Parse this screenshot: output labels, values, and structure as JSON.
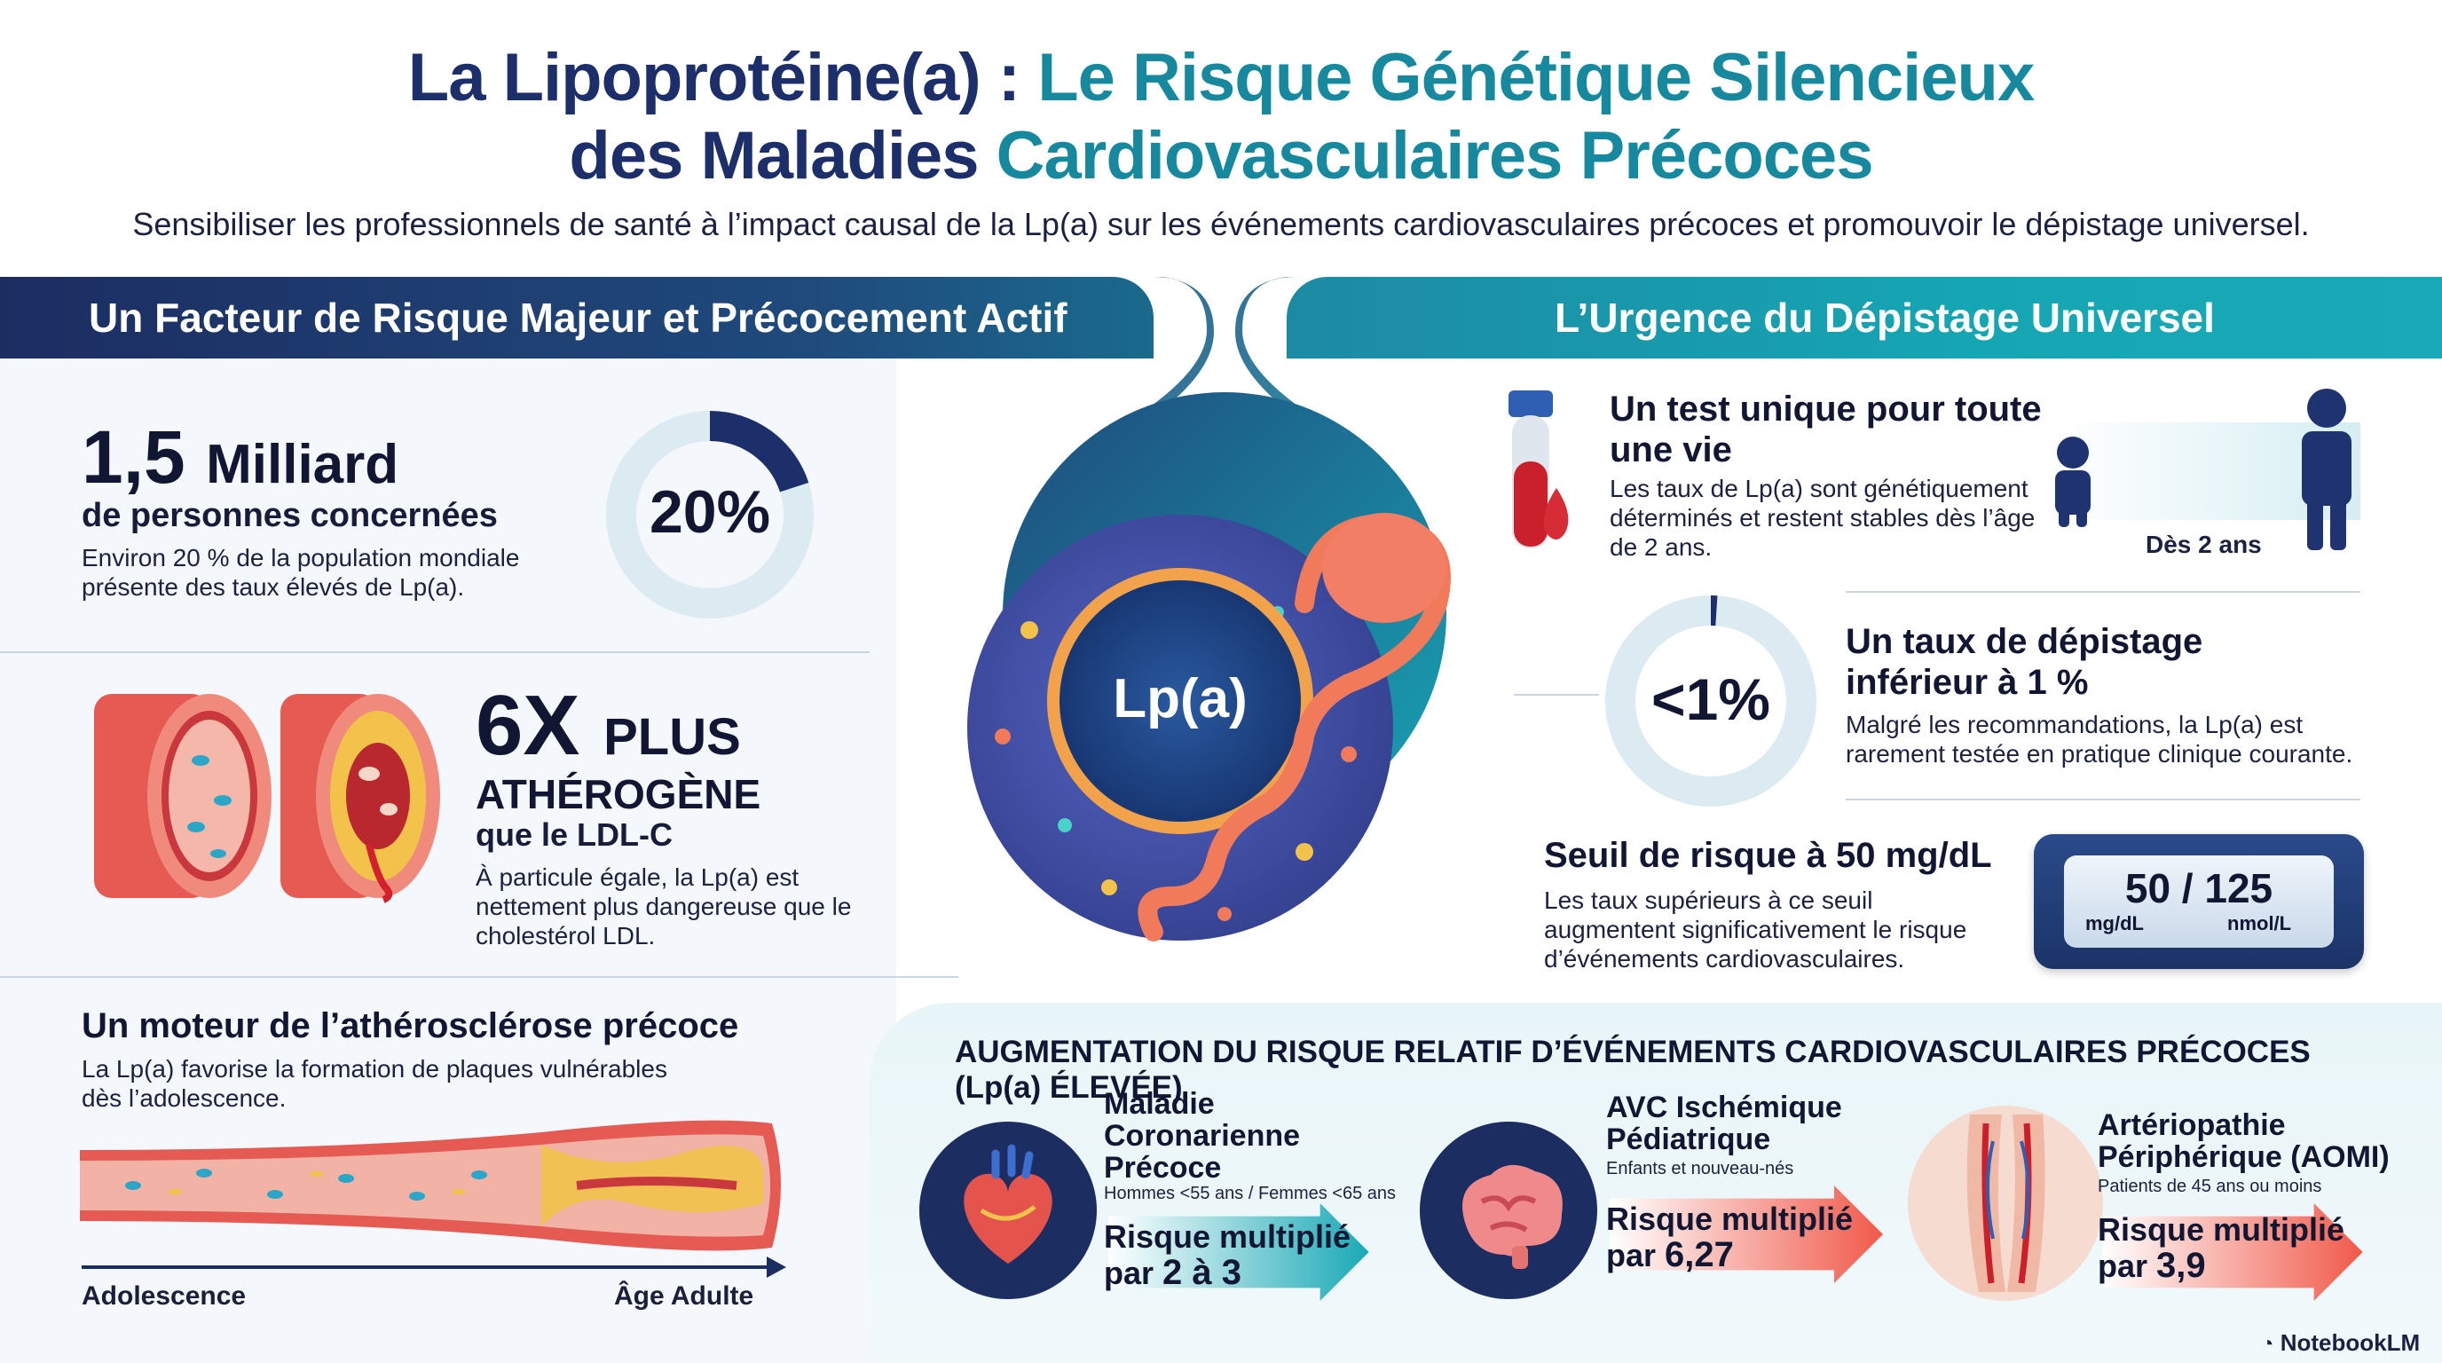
{
  "title": {
    "line1_dark": "La Lipoprotéine(a) : ",
    "line1_teal": "Le Risque Génétique Silencieux",
    "line2_dark": "des Maladies ",
    "line2_teal": "Cardiovasculaires Précoces"
  },
  "subtitle": "Sensibiliser les professionnels de santé à l’impact causal de la Lp(a) sur les événements cardiovasculaires précoces et promouvoir le dépistage universel.",
  "left_section": {
    "banner": "Un Facteur de Risque Majeur et Précocement Actif",
    "stat1": {
      "number": "1,5",
      "unit": "Milliard",
      "subtitle": "de personnes concernées",
      "description": "Environ 20 % de la population mondiale présente des taux élevés de Lp(a).",
      "donut_label": "20%",
      "donut_fraction": 0.2
    },
    "stat2": {
      "number": "6X",
      "unit": "PLUS",
      "subtitle1": "ATHÉROGÈNE",
      "subtitle2": "que le LDL-C",
      "description": "À particule égale, la Lp(a) est nettement plus dangereuse que le cholestérol LDL."
    },
    "stat3": {
      "title": "Un moteur de l’athérosclérose précoce",
      "description": "La Lp(a) favorise la formation de plaques vulnérables dès l’adolescence.",
      "axis_start": "Adolescence",
      "axis_end": "Âge Adulte"
    }
  },
  "center": {
    "molecule_label": "Lp(a)"
  },
  "right_section": {
    "banner": "L’Urgence du Dépistage Universel",
    "item1": {
      "title": "Un test unique pour toute une vie",
      "description": "Les taux de Lp(a) sont génétiquement déterminés et restent stables dès l’âge de 2 ans.",
      "people_label": "Dès 2 ans"
    },
    "item2": {
      "donut_label": "<1%",
      "donut_fraction": 0.01,
      "title": "Un taux de dépistage inférieur à 1 %",
      "description": "Malgré les recommandations, la Lp(a) est rarement testée en pratique clinique courante."
    },
    "item3": {
      "title": "Seuil de risque à 50 mg/dL",
      "description": "Les taux supérieurs à ce seuil augmentent significativement le risque d’événements cardiovasculaires.",
      "meter_value": "50 / 125",
      "meter_unit1": "mg/dL",
      "meter_unit2": "nmol/L"
    }
  },
  "risk_section": {
    "heading": "AUGMENTATION DU RISQUE RELATIF D’ÉVÉNEMENTS CARDIOVASCULAIRES PRÉCOCES (Lp(a) ÉLEVÉE)",
    "items": [
      {
        "icon": "heart-icon",
        "title_lines": [
          "Maladie",
          "Coronarienne",
          "Précoce"
        ],
        "subtitle": "Hommes <55 ans / Femmes <65 ans",
        "risk_line1": "Risque multiplié",
        "risk_line2_prefix": "par ",
        "risk_value": "2 à 3"
      },
      {
        "icon": "brain-icon",
        "title_lines": [
          "AVC Ischémique",
          "Pédiatrique"
        ],
        "subtitle": "Enfants et nouveau-nés",
        "risk_line1": "Risque multiplié",
        "risk_line2_prefix": "par ",
        "risk_value": "6,27"
      },
      {
        "icon": "legs-arteries-icon",
        "title_lines": [
          "Artériopathie",
          "Périphérique (AOMI)"
        ],
        "subtitle": "Patients de 45 ans ou moins",
        "risk_line1": "Risque multiplié",
        "risk_line2_prefix": "par ",
        "risk_value": "3,9"
      }
    ]
  },
  "footer": {
    "brand": "NotebookLM"
  },
  "colors": {
    "navy": "#1c2d62",
    "teal": "#16899e",
    "artery_red": "#e0564f",
    "accent_orange": "#f07a5a"
  }
}
